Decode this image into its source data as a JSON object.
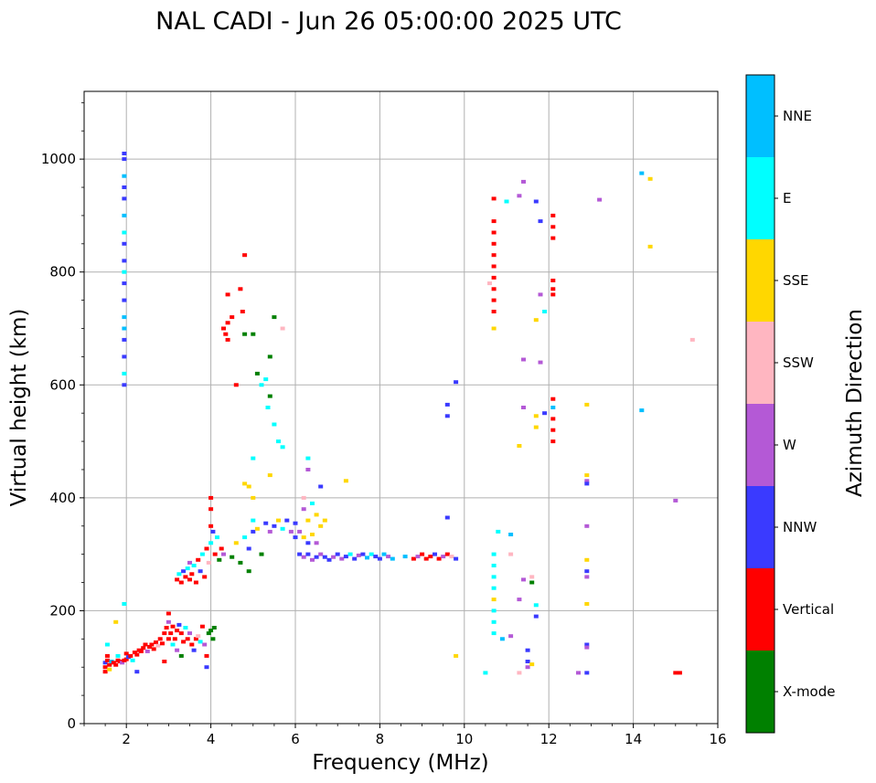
{
  "chart_data": {
    "type": "scatter",
    "title": "NAL CADI - Jun 26 05:00:00 2025 UTC",
    "xlabel": "Frequency (MHz)",
    "ylabel": "Virtual height (km)",
    "xlim": [
      1,
      16
    ],
    "ylim": [
      0,
      1120
    ],
    "xticks": [
      2,
      4,
      6,
      8,
      10,
      12,
      14,
      16
    ],
    "yticks": [
      0,
      200,
      400,
      600,
      800,
      1000
    ],
    "grid": true,
    "colorbar": {
      "label": "Azimuth Direction",
      "categories": [
        {
          "name": "X-mode",
          "color": "#008000"
        },
        {
          "name": "Vertical",
          "color": "#ff0000"
        },
        {
          "name": "NNW",
          "color": "#3a3aff"
        },
        {
          "name": "W",
          "color": "#b459d6"
        },
        {
          "name": "SSW",
          "color": "#ffb6c1"
        },
        {
          "name": "SSE",
          "color": "#ffd700"
        },
        {
          "name": "E",
          "color": "#00ffff"
        },
        {
          "name": "NNE",
          "color": "#00bfff"
        }
      ]
    },
    "points": [
      [
        1.5,
        92,
        "Vertical"
      ],
      [
        1.5,
        100,
        "Vertical"
      ],
      [
        1.5,
        108,
        "NNW"
      ],
      [
        1.55,
        112,
        "Vertical"
      ],
      [
        1.55,
        120,
        "Vertical"
      ],
      [
        1.55,
        140,
        "E"
      ],
      [
        1.6,
        96,
        "SSE"
      ],
      [
        1.6,
        104,
        "Vertical"
      ],
      [
        1.65,
        110,
        "NNE"
      ],
      [
        1.7,
        108,
        "Vertical"
      ],
      [
        1.75,
        104,
        "Vertical"
      ],
      [
        1.75,
        180,
        "SSE"
      ],
      [
        1.8,
        112,
        "Vertical"
      ],
      [
        1.8,
        120,
        "E"
      ],
      [
        1.85,
        110,
        "Vertical"
      ],
      [
        1.9,
        108,
        "W"
      ],
      [
        1.95,
        112,
        "Vertical"
      ],
      [
        1.95,
        212,
        "E"
      ],
      [
        2.0,
        114,
        "Vertical"
      ],
      [
        2.0,
        124,
        "Vertical"
      ],
      [
        2.05,
        118,
        "NNW"
      ],
      [
        2.1,
        120,
        "Vertical"
      ],
      [
        2.15,
        112,
        "E"
      ],
      [
        2.2,
        126,
        "Vertical"
      ],
      [
        2.25,
        122,
        "Vertical"
      ],
      [
        2.25,
        92,
        "NNW"
      ],
      [
        2.3,
        130,
        "Vertical"
      ],
      [
        2.35,
        128,
        "Vertical"
      ],
      [
        2.4,
        134,
        "Vertical"
      ],
      [
        2.45,
        140,
        "Vertical"
      ],
      [
        2.5,
        128,
        "W"
      ],
      [
        2.55,
        136,
        "Vertical"
      ],
      [
        2.6,
        140,
        "Vertical"
      ],
      [
        2.65,
        132,
        "Vertical"
      ],
      [
        2.7,
        144,
        "Vertical"
      ],
      [
        2.75,
        138,
        "SSW"
      ],
      [
        2.8,
        150,
        "Vertical"
      ],
      [
        2.85,
        142,
        "Vertical"
      ],
      [
        2.9,
        160,
        "Vertical"
      ],
      [
        2.9,
        110,
        "Vertical"
      ],
      [
        2.95,
        170,
        "Vertical"
      ],
      [
        3.0,
        150,
        "Vertical"
      ],
      [
        3.0,
        180,
        "W"
      ],
      [
        3.0,
        195,
        "Vertical"
      ],
      [
        3.05,
        160,
        "Vertical"
      ],
      [
        3.1,
        172,
        "Vertical"
      ],
      [
        3.1,
        140,
        "E"
      ],
      [
        3.15,
        150,
        "Vertical"
      ],
      [
        3.2,
        165,
        "Vertical"
      ],
      [
        3.2,
        130,
        "W"
      ],
      [
        3.25,
        175,
        "NNW"
      ],
      [
        3.3,
        160,
        "Vertical"
      ],
      [
        3.3,
        120,
        "X-mode"
      ],
      [
        3.35,
        145,
        "Vertical"
      ],
      [
        3.4,
        170,
        "E"
      ],
      [
        3.45,
        150,
        "Vertical"
      ],
      [
        3.5,
        160,
        "W"
      ],
      [
        3.55,
        140,
        "Vertical"
      ],
      [
        3.6,
        130,
        "NNW"
      ],
      [
        3.65,
        150,
        "Vertical"
      ],
      [
        3.7,
        155,
        "SSW"
      ],
      [
        3.75,
        145,
        "E"
      ],
      [
        3.8,
        172,
        "Vertical"
      ],
      [
        3.85,
        140,
        "W"
      ],
      [
        3.9,
        120,
        "Vertical"
      ],
      [
        3.95,
        160,
        "X-mode"
      ],
      [
        4.0,
        165,
        "X-mode"
      ],
      [
        4.05,
        150,
        "X-mode"
      ],
      [
        4.08,
        170,
        "X-mode"
      ],
      [
        3.9,
        100,
        "NNW"
      ],
      [
        3.2,
        255,
        "Vertical"
      ],
      [
        3.25,
        265,
        "E"
      ],
      [
        3.3,
        250,
        "Vertical"
      ],
      [
        3.35,
        270,
        "NNW"
      ],
      [
        3.4,
        260,
        "Vertical"
      ],
      [
        3.45,
        275,
        "E"
      ],
      [
        3.5,
        255,
        "Vertical"
      ],
      [
        3.5,
        285,
        "W"
      ],
      [
        3.55,
        265,
        "Vertical"
      ],
      [
        3.6,
        280,
        "E"
      ],
      [
        3.65,
        250,
        "Vertical"
      ],
      [
        3.7,
        290,
        "Vertical"
      ],
      [
        3.75,
        270,
        "NNW"
      ],
      [
        3.8,
        300,
        "E"
      ],
      [
        3.85,
        260,
        "Vertical"
      ],
      [
        3.9,
        310,
        "Vertical"
      ],
      [
        3.95,
        285,
        "SSW"
      ],
      [
        4.0,
        320,
        "E"
      ],
      [
        4.0,
        350,
        "Vertical"
      ],
      [
        4.0,
        380,
        "Vertical"
      ],
      [
        4.0,
        400,
        "Vertical"
      ],
      [
        4.05,
        340,
        "NNW"
      ],
      [
        4.1,
        300,
        "Vertical"
      ],
      [
        4.15,
        330,
        "E"
      ],
      [
        4.2,
        290,
        "X-mode"
      ],
      [
        4.25,
        310,
        "Vertical"
      ],
      [
        4.3,
        300,
        "W"
      ],
      [
        4.5,
        295,
        "X-mode"
      ],
      [
        4.6,
        320,
        "SSE"
      ],
      [
        4.7,
        285,
        "X-mode"
      ],
      [
        4.8,
        330,
        "E"
      ],
      [
        4.9,
        310,
        "NNW"
      ],
      [
        4.9,
        270,
        "X-mode"
      ],
      [
        5.0,
        340,
        "NNW"
      ],
      [
        5.0,
        360,
        "E"
      ],
      [
        5.1,
        345,
        "SSE"
      ],
      [
        5.2,
        300,
        "X-mode"
      ],
      [
        5.3,
        355,
        "NNW"
      ],
      [
        5.4,
        340,
        "W"
      ],
      [
        5.5,
        350,
        "NNW"
      ],
      [
        5.6,
        360,
        "SSE"
      ],
      [
        5.7,
        345,
        "E"
      ],
      [
        5.8,
        360,
        "NNW"
      ],
      [
        5.9,
        340,
        "W"
      ],
      [
        6.0,
        355,
        "NNW"
      ],
      [
        6.0,
        330,
        "NNW"
      ],
      [
        6.1,
        340,
        "W"
      ],
      [
        6.2,
        330,
        "SSE"
      ],
      [
        6.3,
        320,
        "NNW"
      ],
      [
        6.4,
        335,
        "SSE"
      ],
      [
        6.5,
        320,
        "W"
      ],
      [
        6.2,
        380,
        "W"
      ],
      [
        6.3,
        360,
        "SSE"
      ],
      [
        6.4,
        390,
        "E"
      ],
      [
        6.5,
        370,
        "SSE"
      ],
      [
        6.6,
        350,
        "SSE"
      ],
      [
        6.7,
        360,
        "SSE"
      ],
      [
        6.1,
        300,
        "NNW"
      ],
      [
        6.2,
        295,
        "W"
      ],
      [
        6.3,
        300,
        "NNW"
      ],
      [
        6.4,
        290,
        "W"
      ],
      [
        6.5,
        295,
        "NNW"
      ],
      [
        6.6,
        300,
        "W"
      ],
      [
        6.7,
        295,
        "NNW"
      ],
      [
        6.8,
        290,
        "NNW"
      ],
      [
        6.9,
        295,
        "W"
      ],
      [
        7.0,
        300,
        "NNW"
      ],
      [
        7.1,
        292,
        "W"
      ],
      [
        7.2,
        296,
        "NNW"
      ],
      [
        7.3,
        300,
        "E"
      ],
      [
        7.4,
        292,
        "NNW"
      ],
      [
        7.5,
        298,
        "W"
      ],
      [
        7.6,
        300,
        "NNW"
      ],
      [
        7.7,
        294,
        "NNE"
      ],
      [
        7.8,
        300,
        "E"
      ],
      [
        7.9,
        296,
        "NNW"
      ],
      [
        8.0,
        292,
        "NNW"
      ],
      [
        8.1,
        300,
        "NNE"
      ],
      [
        8.2,
        296,
        "W"
      ],
      [
        8.3,
        292,
        "NNE"
      ],
      [
        8.6,
        296,
        "NNE"
      ],
      [
        8.8,
        292,
        "Vertical"
      ],
      [
        8.9,
        296,
        "W"
      ],
      [
        9.0,
        300,
        "Vertical"
      ],
      [
        9.1,
        292,
        "Vertical"
      ],
      [
        9.2,
        296,
        "Vertical"
      ],
      [
        9.3,
        300,
        "NNW"
      ],
      [
        9.4,
        292,
        "Vertical"
      ],
      [
        9.5,
        296,
        "W"
      ],
      [
        9.6,
        300,
        "Vertical"
      ],
      [
        9.7,
        296,
        "SSW"
      ],
      [
        9.8,
        292,
        "NNW"
      ],
      [
        6.3,
        450,
        "W"
      ],
      [
        6.3,
        470,
        "E"
      ],
      [
        6.6,
        420,
        "NNW"
      ],
      [
        7.2,
        430,
        "SSE"
      ],
      [
        6.2,
        400,
        "SSW"
      ],
      [
        4.3,
        700,
        "Vertical"
      ],
      [
        4.35,
        690,
        "Vertical"
      ],
      [
        4.4,
        710,
        "Vertical"
      ],
      [
        4.4,
        680,
        "Vertical"
      ],
      [
        4.5,
        720,
        "Vertical"
      ],
      [
        4.6,
        600,
        "Vertical"
      ],
      [
        4.7,
        770,
        "Vertical"
      ],
      [
        4.75,
        730,
        "Vertical"
      ],
      [
        4.8,
        690,
        "X-mode"
      ],
      [
        4.4,
        760,
        "Vertical"
      ],
      [
        4.8,
        830,
        "Vertical"
      ],
      [
        5.0,
        690,
        "X-mode"
      ],
      [
        5.1,
        620,
        "X-mode"
      ],
      [
        5.2,
        600,
        "E"
      ],
      [
        5.3,
        610,
        "E"
      ],
      [
        5.35,
        560,
        "E"
      ],
      [
        5.4,
        650,
        "X-mode"
      ],
      [
        5.5,
        530,
        "E"
      ],
      [
        5.6,
        500,
        "E"
      ],
      [
        5.7,
        490,
        "E"
      ],
      [
        5.5,
        720,
        "X-mode"
      ],
      [
        5.7,
        700,
        "SSW"
      ],
      [
        5.4,
        580,
        "X-mode"
      ],
      [
        5.0,
        470,
        "E"
      ],
      [
        4.9,
        420,
        "SSE"
      ],
      [
        4.8,
        425,
        "SSE"
      ],
      [
        5.4,
        440,
        "SSE"
      ],
      [
        5.0,
        400,
        "SSE"
      ],
      [
        1.95,
        600,
        "NNW"
      ],
      [
        1.95,
        650,
        "NNW"
      ],
      [
        1.95,
        700,
        "NNE"
      ],
      [
        1.95,
        750,
        "NNW"
      ],
      [
        1.95,
        800,
        "E"
      ],
      [
        1.95,
        850,
        "NNW"
      ],
      [
        1.95,
        900,
        "NNE"
      ],
      [
        1.95,
        950,
        "NNW"
      ],
      [
        1.95,
        1000,
        "NNW"
      ],
      [
        1.95,
        620,
        "E"
      ],
      [
        1.95,
        680,
        "NNW"
      ],
      [
        1.95,
        720,
        "NNE"
      ],
      [
        1.95,
        780,
        "NNW"
      ],
      [
        1.95,
        820,
        "NNW"
      ],
      [
        1.95,
        870,
        "E"
      ],
      [
        1.95,
        930,
        "NNW"
      ],
      [
        1.95,
        970,
        "NNE"
      ],
      [
        1.95,
        1010,
        "NNW"
      ],
      [
        10.7,
        730,
        "Vertical"
      ],
      [
        10.7,
        750,
        "Vertical"
      ],
      [
        10.7,
        770,
        "Vertical"
      ],
      [
        10.7,
        790,
        "Vertical"
      ],
      [
        10.7,
        810,
        "Vertical"
      ],
      [
        10.7,
        830,
        "Vertical"
      ],
      [
        10.7,
        850,
        "Vertical"
      ],
      [
        10.7,
        870,
        "Vertical"
      ],
      [
        10.7,
        890,
        "Vertical"
      ],
      [
        10.7,
        700,
        "SSE"
      ],
      [
        10.7,
        930,
        "Vertical"
      ],
      [
        10.6,
        780,
        "SSW"
      ],
      [
        11.0,
        925,
        "E"
      ],
      [
        11.3,
        935,
        "W"
      ],
      [
        11.4,
        960,
        "W"
      ],
      [
        11.7,
        925,
        "NNW"
      ],
      [
        11.8,
        890,
        "NNW"
      ],
      [
        12.1,
        880,
        "Vertical"
      ],
      [
        12.1,
        860,
        "Vertical"
      ],
      [
        12.1,
        900,
        "Vertical"
      ],
      [
        12.1,
        770,
        "Vertical"
      ],
      [
        12.1,
        760,
        "Vertical"
      ],
      [
        12.1,
        785,
        "Vertical"
      ],
      [
        11.8,
        760,
        "W"
      ],
      [
        11.9,
        730,
        "E"
      ],
      [
        11.7,
        715,
        "SSE"
      ],
      [
        11.4,
        645,
        "W"
      ],
      [
        11.8,
        640,
        "W"
      ],
      [
        13.2,
        928,
        "W"
      ],
      [
        14.2,
        975,
        "NNE"
      ],
      [
        14.4,
        965,
        "SSE"
      ],
      [
        14.4,
        845,
        "SSE"
      ],
      [
        15.4,
        680,
        "SSW"
      ],
      [
        9.8,
        605,
        "NNW"
      ],
      [
        9.6,
        565,
        "NNW"
      ],
      [
        9.6,
        545,
        "NNW"
      ],
      [
        12.1,
        500,
        "Vertical"
      ],
      [
        12.1,
        520,
        "Vertical"
      ],
      [
        12.1,
        540,
        "Vertical"
      ],
      [
        12.1,
        560,
        "NNE"
      ],
      [
        12.1,
        575,
        "Vertical"
      ],
      [
        11.9,
        550,
        "NNW"
      ],
      [
        11.7,
        545,
        "SSE"
      ],
      [
        11.7,
        525,
        "SSE"
      ],
      [
        11.4,
        560,
        "W"
      ],
      [
        11.3,
        492,
        "SSE"
      ],
      [
        12.9,
        565,
        "SSE"
      ],
      [
        14.2,
        555,
        "NNE"
      ],
      [
        12.9,
        440,
        "SSE"
      ],
      [
        12.9,
        430,
        "W"
      ],
      [
        12.9,
        425,
        "NNW"
      ],
      [
        15.0,
        395,
        "W"
      ],
      [
        12.9,
        350,
        "W"
      ],
      [
        9.6,
        365,
        "NNW"
      ],
      [
        10.7,
        160,
        "E"
      ],
      [
        10.7,
        180,
        "E"
      ],
      [
        10.7,
        200,
        "E"
      ],
      [
        10.7,
        220,
        "SSE"
      ],
      [
        10.7,
        240,
        "E"
      ],
      [
        10.7,
        260,
        "E"
      ],
      [
        10.7,
        280,
        "E"
      ],
      [
        10.7,
        300,
        "E"
      ],
      [
        10.8,
        340,
        "E"
      ],
      [
        11.1,
        335,
        "NNE"
      ],
      [
        11.1,
        300,
        "SSW"
      ],
      [
        11.4,
        255,
        "W"
      ],
      [
        11.6,
        250,
        "X-mode"
      ],
      [
        11.6,
        260,
        "SSW"
      ],
      [
        11.3,
        220,
        "W"
      ],
      [
        11.7,
        210,
        "E"
      ],
      [
        11.7,
        190,
        "NNW"
      ],
      [
        10.9,
        150,
        "NNE"
      ],
      [
        11.1,
        155,
        "W"
      ],
      [
        11.5,
        130,
        "NNW"
      ],
      [
        11.5,
        110,
        "NNW"
      ],
      [
        11.5,
        100,
        "W"
      ],
      [
        11.6,
        105,
        "SSE"
      ],
      [
        11.3,
        90,
        "SSW"
      ],
      [
        10.5,
        90,
        "E"
      ],
      [
        9.8,
        120,
        "SSE"
      ],
      [
        12.9,
        290,
        "SSE"
      ],
      [
        12.9,
        270,
        "NNW"
      ],
      [
        12.9,
        260,
        "W"
      ],
      [
        12.9,
        212,
        "SSE"
      ],
      [
        12.9,
        140,
        "NNW"
      ],
      [
        12.9,
        135,
        "W"
      ],
      [
        12.7,
        90,
        "W"
      ],
      [
        12.9,
        90,
        "NNW"
      ],
      [
        15.0,
        90,
        "Vertical"
      ],
      [
        15.1,
        90,
        "Vertical"
      ]
    ]
  }
}
